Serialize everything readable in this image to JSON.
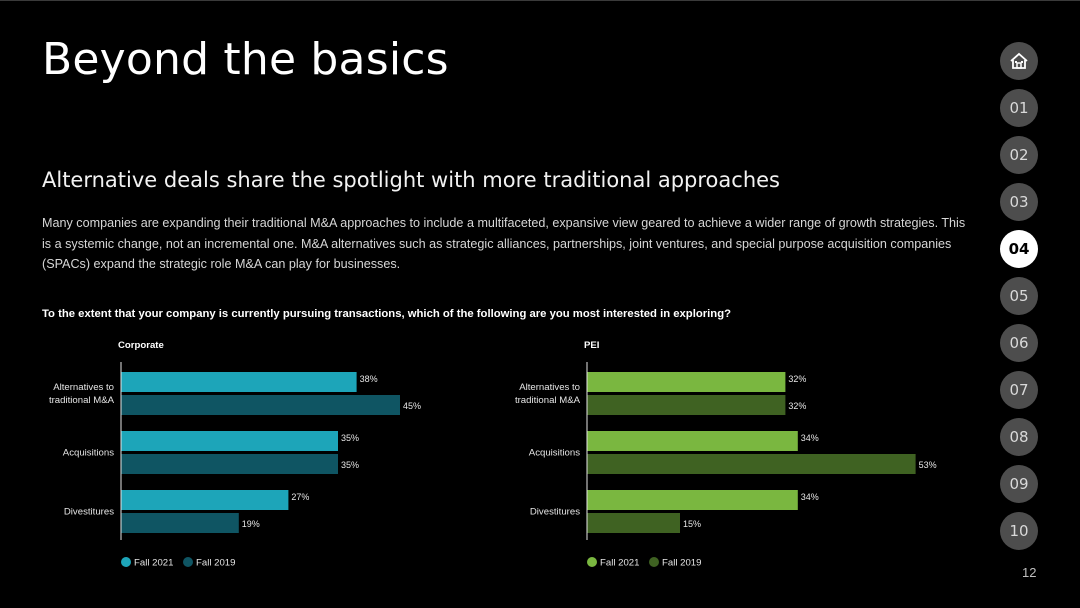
{
  "page": {
    "title": "Beyond the basics",
    "subtitle": "Alternative deals share the spotlight with more traditional approaches",
    "paragraph": "Many companies are expanding their traditional M&A approaches to include a multifaceted, expansive view geared to achieve a wider range of growth strategies. This is a systemic change, not an incremental one. M&A alternatives such as strategic alliances, partnerships, joint ventures, and special purpose acquisition companies (SPACs) expand the strategic role M&A can play for businesses.",
    "question": "To the extent that your company is currently pursuing transactions, which of the following are you most interested in exploring?",
    "page_number": "12"
  },
  "nav": {
    "home_icon": "home-icon",
    "items": [
      {
        "label": "01",
        "active": false
      },
      {
        "label": "02",
        "active": false
      },
      {
        "label": "03",
        "active": false
      },
      {
        "label": "04",
        "active": true
      },
      {
        "label": "05",
        "active": false
      },
      {
        "label": "06",
        "active": false
      },
      {
        "label": "07",
        "active": false
      },
      {
        "label": "08",
        "active": false
      },
      {
        "label": "09",
        "active": false
      },
      {
        "label": "10",
        "active": false
      }
    ]
  },
  "chart_data": [
    {
      "type": "bar",
      "orientation": "horizontal",
      "title": "Corporate",
      "categories": [
        "Alternatives to traditional M&A",
        "Acquisitions",
        "Divestitures"
      ],
      "category_lines": [
        [
          "Alternatives to",
          "traditional M&A"
        ],
        [
          "Acquisitions"
        ],
        [
          "Divestitures"
        ]
      ],
      "series": [
        {
          "name": "Fall 2021",
          "values": [
            38,
            35,
            27
          ],
          "color": "#1da5b9"
        },
        {
          "name": "Fall 2019",
          "values": [
            45,
            35,
            19
          ],
          "color": "#0f5563"
        }
      ],
      "value_suffix": "%",
      "legend": "bottom-left"
    },
    {
      "type": "bar",
      "orientation": "horizontal",
      "title": "PEI",
      "categories": [
        "Alternatives to traditional M&A",
        "Acquisitions",
        "Divestitures"
      ],
      "category_lines": [
        [
          "Alternatives to",
          "traditional M&A"
        ],
        [
          "Acquisitions"
        ],
        [
          "Divestitures"
        ]
      ],
      "series": [
        {
          "name": "Fall 2021",
          "values": [
            32,
            34,
            34
          ],
          "color": "#7ab740"
        },
        {
          "name": "Fall 2019",
          "values": [
            32,
            53,
            15
          ],
          "color": "#3f6222"
        }
      ],
      "value_suffix": "%",
      "legend": "bottom-left"
    }
  ]
}
